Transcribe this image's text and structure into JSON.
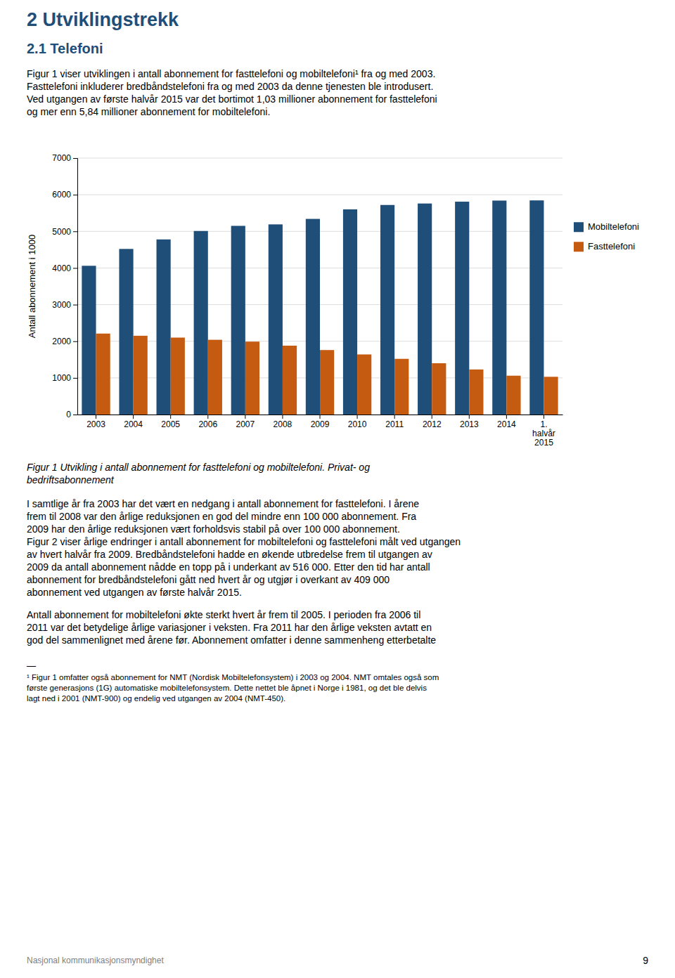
{
  "chart_data": {
    "type": "bar",
    "categories": [
      "2003",
      "2004",
      "2005",
      "2006",
      "2007",
      "2008",
      "2009",
      "2010",
      "2011",
      "2012",
      "2013",
      "2014",
      "1.\nhalvår\n2015"
    ],
    "series": [
      {
        "name": "Mobiltelefoni",
        "color": "#1f4e79",
        "values": [
          4060,
          4520,
          4780,
          5010,
          5150,
          5190,
          5340,
          5600,
          5720,
          5760,
          5810,
          5840,
          5845
        ]
      },
      {
        "name": "Fasttelefoni",
        "color": "#c55a11",
        "values": [
          2210,
          2150,
          2100,
          2040,
          1990,
          1880,
          1760,
          1640,
          1520,
          1400,
          1230,
          1060,
          1030
        ]
      }
    ],
    "ylim": [
      0,
      7000
    ],
    "yticks": [
      0,
      1000,
      2000,
      3000,
      4000,
      5000,
      6000,
      7000
    ],
    "y_label": "Antall abonnement i 1000",
    "grid": true,
    "legend": "right"
  },
  "heading": "2 Utviklingstrekk",
  "subheading": "2.1 Telefoni",
  "intro": [
    "Figur 1 viser utviklingen i antall abonnement for fasttelefoni og mobiltelefoni¹ fra og med 2003.",
    "Fasttelefoni inkluderer bredbåndstelefoni fra og med 2003 da denne tjenesten ble introdusert.",
    "Ved utgangen av første halvår 2015 var det bortimot 1,03 millioner abonnement for fasttelefoni",
    "og mer enn 5,84 millioner abonnement for mobiltelefoni."
  ],
  "caption": [
    "Figur 1 Utvikling i antall abonnement for fasttelefoni og mobiltelefoni. Privat- og",
    "bedriftsabonnement"
  ],
  "body": [
    [
      "I samtlige år fra 2003 har det vært en nedgang i antall abonnement for fasttelefoni. I årene",
      "frem til 2008 var den årlige reduksjonen en god del mindre enn 100 000 abonnement. Fra",
      "2009 har den årlige reduksjonen vært forholdsvis stabil på over 100 000 abonnement.",
      "Figur 2 viser årlige endringer i antall abonnement for mobiltelefoni og fasttelefoni målt ved utgangen",
      "av hvert halvår fra 2009. Bredbåndstelefoni hadde en økende utbredelse frem til utgangen av",
      "2009 da antall abonnement nådde en topp på i underkant av 516 000. Etter den tid har antall",
      "abonnement for bredbåndstelefoni gått ned hvert år og utgjør i overkant av 409 000",
      "abonnement ved utgangen av første halvår 2015."
    ],
    [
      "Antall abonnement for mobiltelefoni økte sterkt hvert år frem til 2005. I perioden fra 2006 til",
      "2011 var det betydelige årlige variasjoner i veksten. Fra 2011 har den årlige veksten avtatt en",
      "god del sammenlignet med årene før. Abonnement omfatter i denne sammenheng etterbetalte"
    ]
  ],
  "footnote_separator": "—",
  "footnote": [
    "¹ Figur 1 omfatter også abonnement for NMT (Nordisk Mobiltelefonsystem) i 2003 og 2004. NMT omtales også som",
    "første generasjons (1G) automatiske mobiltelefonsystem. Dette nettet ble åpnet i Norge i 1981, og det ble delvis",
    "lagt ned i 2001 (NMT-900) og endelig ved utgangen av 2004 (NMT-450)."
  ],
  "footer": "Nasjonal kommunikasjonsmyndighet",
  "page_number": "9"
}
